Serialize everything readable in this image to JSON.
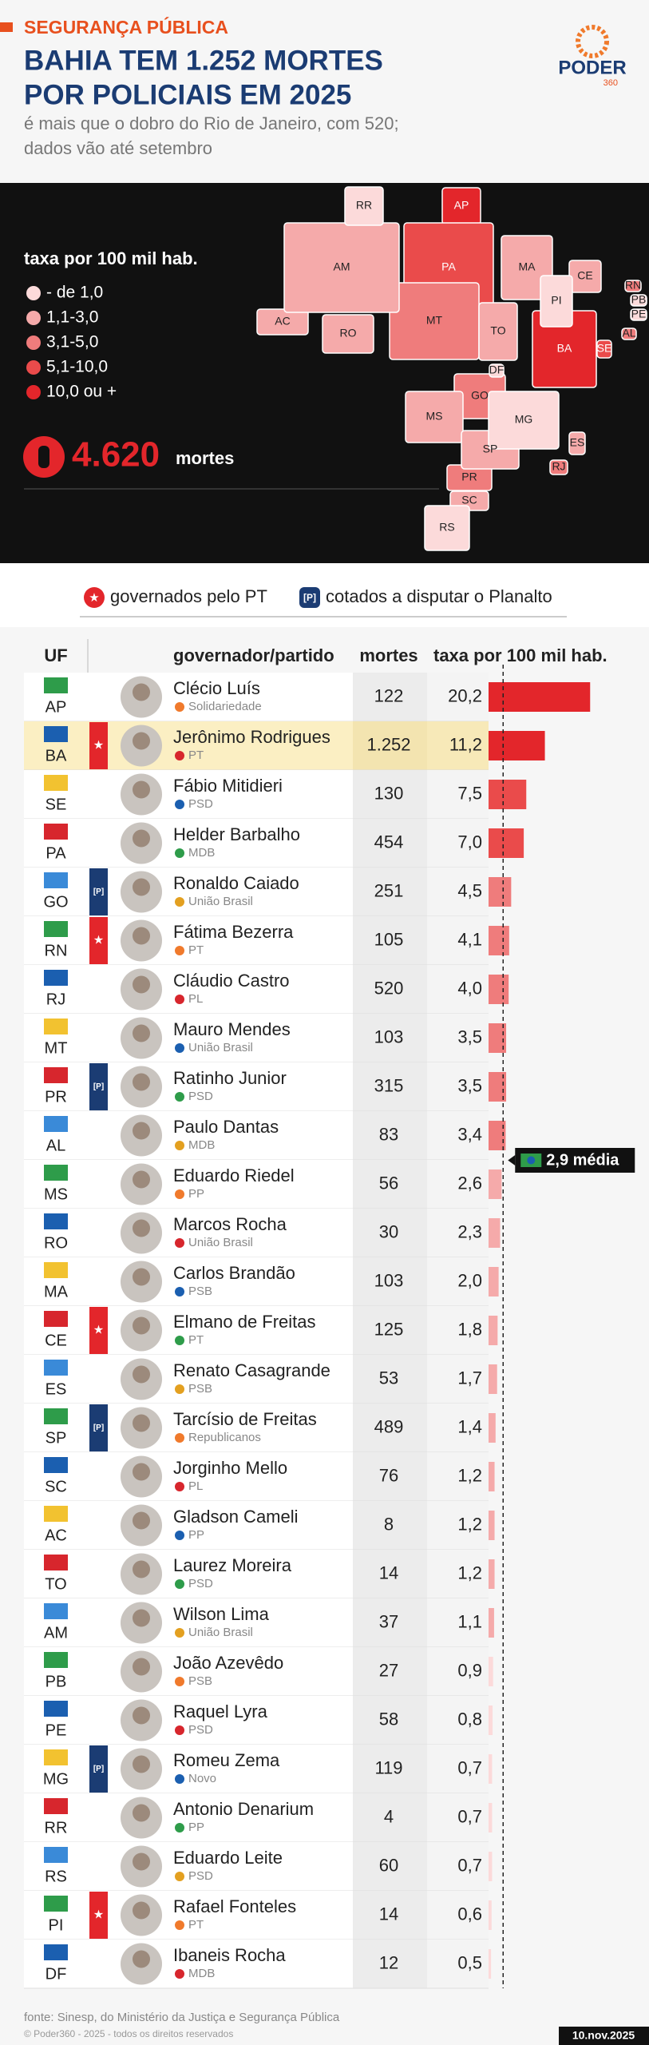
{
  "chart_data": {
    "type": "bar",
    "kicker": "SEGURANÇA PÚBLICA",
    "title_lines": [
      "BAHIA TEM 1.252 MORTES",
      "POR POLICIAIS EM 2025"
    ],
    "subtitle_lines": [
      "é mais que o dobro do Rio de Janeiro, com 520;",
      "dados vão até setembro"
    ],
    "logo": {
      "name": "PODER",
      "number": "360"
    },
    "map_legend": {
      "title": "taxa por 100 mil hab.",
      "classes": [
        {
          "label": "- de 1,0",
          "color": "#fcdada"
        },
        {
          "label": "1,1-3,0",
          "color": "#f5aaaa"
        },
        {
          "label": "3,1-5,0",
          "color": "#ef7c7c"
        },
        {
          "label": "5,1-10,0",
          "color": "#ea4b4b"
        },
        {
          "label": "10,0 ou +",
          "color": "#e3262b"
        }
      ]
    },
    "total": {
      "value": 4620,
      "label": "4.620",
      "unit": "mortes"
    },
    "markers": {
      "pt": "governados pelo PT",
      "planalto_marker": "[P]",
      "planalto": "cotados a disputar o Planalto"
    },
    "columns": [
      "UF",
      "governador/partido",
      "mortes",
      "taxa por 100 mil hab."
    ],
    "rows": [
      {
        "uf": "AP",
        "governor": "Clécio Luís",
        "party": "Solidariedade",
        "deaths": 122,
        "deaths_label": "122",
        "rate": 20.2,
        "rate_label": "20,2",
        "color": "#e3262b",
        "pt": false,
        "planalto": false
      },
      {
        "uf": "BA",
        "governor": "Jerônimo Rodrigues",
        "party": "PT",
        "deaths": 1252,
        "deaths_label": "1.252",
        "rate": 11.2,
        "rate_label": "11,2",
        "color": "#e3262b",
        "pt": true,
        "planalto": false,
        "highlight": true
      },
      {
        "uf": "SE",
        "governor": "Fábio Mitidieri",
        "party": "PSD",
        "deaths": 130,
        "deaths_label": "130",
        "rate": 7.5,
        "rate_label": "7,5",
        "color": "#ea4b4b",
        "pt": false,
        "planalto": false
      },
      {
        "uf": "PA",
        "governor": "Helder Barbalho",
        "party": "MDB",
        "deaths": 454,
        "deaths_label": "454",
        "rate": 7.0,
        "rate_label": "7,0",
        "color": "#ea4b4b",
        "pt": false,
        "planalto": false
      },
      {
        "uf": "GO",
        "governor": "Ronaldo Caiado",
        "party": "União Brasil",
        "deaths": 251,
        "deaths_label": "251",
        "rate": 4.5,
        "rate_label": "4,5",
        "color": "#ef7c7c",
        "pt": false,
        "planalto": true
      },
      {
        "uf": "RN",
        "governor": "Fátima Bezerra",
        "party": "PT",
        "deaths": 105,
        "deaths_label": "105",
        "rate": 4.1,
        "rate_label": "4,1",
        "color": "#ef7c7c",
        "pt": true,
        "planalto": false
      },
      {
        "uf": "RJ",
        "governor": "Cláudio Castro",
        "party": "PL",
        "deaths": 520,
        "deaths_label": "520",
        "rate": 4.0,
        "rate_label": "4,0",
        "color": "#ef7c7c",
        "pt": false,
        "planalto": false
      },
      {
        "uf": "MT",
        "governor": "Mauro Mendes",
        "party": "União Brasil",
        "deaths": 103,
        "deaths_label": "103",
        "rate": 3.5,
        "rate_label": "3,5",
        "color": "#ef7c7c",
        "pt": false,
        "planalto": false
      },
      {
        "uf": "PR",
        "governor": "Ratinho Junior",
        "party": "PSD",
        "deaths": 315,
        "deaths_label": "315",
        "rate": 3.5,
        "rate_label": "3,5",
        "color": "#ef7c7c",
        "pt": false,
        "planalto": true
      },
      {
        "uf": "AL",
        "governor": "Paulo Dantas",
        "party": "MDB",
        "deaths": 83,
        "deaths_label": "83",
        "rate": 3.4,
        "rate_label": "3,4",
        "color": "#ef7c7c",
        "pt": false,
        "planalto": false
      },
      {
        "uf": "MS",
        "governor": "Eduardo Riedel",
        "party": "PP",
        "deaths": 56,
        "deaths_label": "56",
        "rate": 2.6,
        "rate_label": "2,6",
        "color": "#f5aaaa",
        "pt": false,
        "planalto": false
      },
      {
        "uf": "RO",
        "governor": "Marcos Rocha",
        "party": "União Brasil",
        "deaths": 30,
        "deaths_label": "30",
        "rate": 2.3,
        "rate_label": "2,3",
        "color": "#f5aaaa",
        "pt": false,
        "planalto": false
      },
      {
        "uf": "MA",
        "governor": "Carlos Brandão",
        "party": "PSB",
        "deaths": 103,
        "deaths_label": "103",
        "rate": 2.0,
        "rate_label": "2,0",
        "color": "#f5aaaa",
        "pt": false,
        "planalto": false
      },
      {
        "uf": "CE",
        "governor": "Elmano de Freitas",
        "party": "PT",
        "deaths": 125,
        "deaths_label": "125",
        "rate": 1.8,
        "rate_label": "1,8",
        "color": "#f5aaaa",
        "pt": true,
        "planalto": false
      },
      {
        "uf": "ES",
        "governor": "Renato Casagrande",
        "party": "PSB",
        "deaths": 53,
        "deaths_label": "53",
        "rate": 1.7,
        "rate_label": "1,7",
        "color": "#f5aaaa",
        "pt": false,
        "planalto": false
      },
      {
        "uf": "SP",
        "governor": "Tarcísio de Freitas",
        "party": "Republicanos",
        "deaths": 489,
        "deaths_label": "489",
        "rate": 1.4,
        "rate_label": "1,4",
        "color": "#f5aaaa",
        "pt": false,
        "planalto": true
      },
      {
        "uf": "SC",
        "governor": "Jorginho Mello",
        "party": "PL",
        "deaths": 76,
        "deaths_label": "76",
        "rate": 1.2,
        "rate_label": "1,2",
        "color": "#f5aaaa",
        "pt": false,
        "planalto": false
      },
      {
        "uf": "AC",
        "governor": "Gladson Cameli",
        "party": "PP",
        "deaths": 8,
        "deaths_label": "8",
        "rate": 1.2,
        "rate_label": "1,2",
        "color": "#f5aaaa",
        "pt": false,
        "planalto": false
      },
      {
        "uf": "TO",
        "governor": "Laurez Moreira",
        "party": "PSD",
        "deaths": 14,
        "deaths_label": "14",
        "rate": 1.2,
        "rate_label": "1,2",
        "color": "#f5aaaa",
        "pt": false,
        "planalto": false
      },
      {
        "uf": "AM",
        "governor": "Wilson Lima",
        "party": "União Brasil",
        "deaths": 37,
        "deaths_label": "37",
        "rate": 1.1,
        "rate_label": "1,1",
        "color": "#f5aaaa",
        "pt": false,
        "planalto": false
      },
      {
        "uf": "PB",
        "governor": "João Azevêdo",
        "party": "PSB",
        "deaths": 27,
        "deaths_label": "27",
        "rate": 0.9,
        "rate_label": "0,9",
        "color": "#fcdada",
        "pt": false,
        "planalto": false
      },
      {
        "uf": "PE",
        "governor": "Raquel Lyra",
        "party": "PSD",
        "deaths": 58,
        "deaths_label": "58",
        "rate": 0.8,
        "rate_label": "0,8",
        "color": "#fcdada",
        "pt": false,
        "planalto": false
      },
      {
        "uf": "MG",
        "governor": "Romeu Zema",
        "party": "Novo",
        "deaths": 119,
        "deaths_label": "119",
        "rate": 0.7,
        "rate_label": "0,7",
        "color": "#fcdada",
        "pt": false,
        "planalto": true
      },
      {
        "uf": "RR",
        "governor": "Antonio Denarium",
        "party": "PP",
        "deaths": 4,
        "deaths_label": "4",
        "rate": 0.7,
        "rate_label": "0,7",
        "color": "#fcdada",
        "pt": false,
        "planalto": false
      },
      {
        "uf": "RS",
        "governor": "Eduardo Leite",
        "party": "PSD",
        "deaths": 60,
        "deaths_label": "60",
        "rate": 0.7,
        "rate_label": "0,7",
        "color": "#fcdada",
        "pt": false,
        "planalto": false
      },
      {
        "uf": "PI",
        "governor": "Rafael Fonteles",
        "party": "PT",
        "deaths": 14,
        "deaths_label": "14",
        "rate": 0.6,
        "rate_label": "0,6",
        "color": "#fcdada",
        "pt": true,
        "planalto": false
      },
      {
        "uf": "DF",
        "governor": "Ibaneis Rocha",
        "party": "MDB",
        "deaths": 12,
        "deaths_label": "12",
        "rate": 0.5,
        "rate_label": "0,5",
        "color": "#fcdada",
        "pt": false,
        "planalto": false
      }
    ],
    "average": {
      "value": 2.9,
      "label": "2,9 média"
    },
    "source": "fonte: Sinesp, do Ministério da Justiça e Segurança Pública",
    "copyright": "© Poder360 - 2025 - todos os direitos reservados",
    "date": "10.nov.2025"
  }
}
